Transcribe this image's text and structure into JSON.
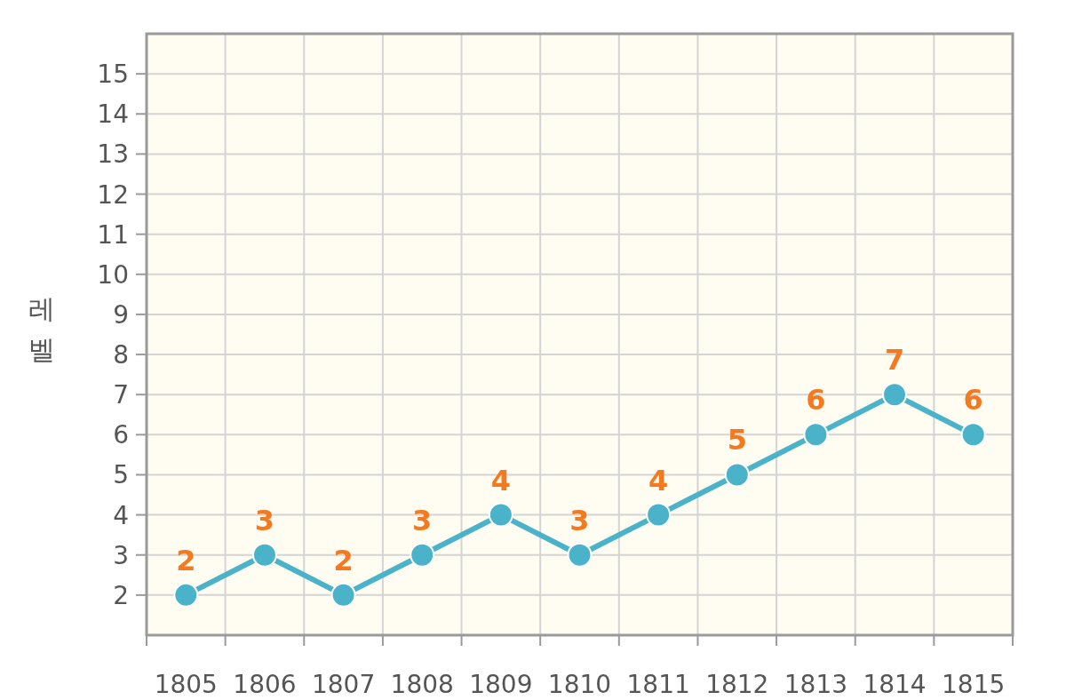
{
  "chart_data": {
    "type": "line",
    "ylabel": "레벨",
    "categories": [
      "1805",
      "1806",
      "1807",
      "1808",
      "1809",
      "1810",
      "1811",
      "1812",
      "1813",
      "1814",
      "1815"
    ],
    "series": [
      {
        "color": "#4ab3c9",
        "values": [
          2,
          3,
          2,
          3,
          4,
          3,
          4,
          5,
          6,
          7,
          6
        ]
      }
    ],
    "ylim": [
      1,
      16
    ],
    "yticks": [
      2,
      3,
      4,
      5,
      6,
      7,
      8,
      9,
      10,
      11,
      12,
      13,
      14,
      15
    ],
    "grid": true,
    "marker": "circle",
    "data_labels": true
  }
}
